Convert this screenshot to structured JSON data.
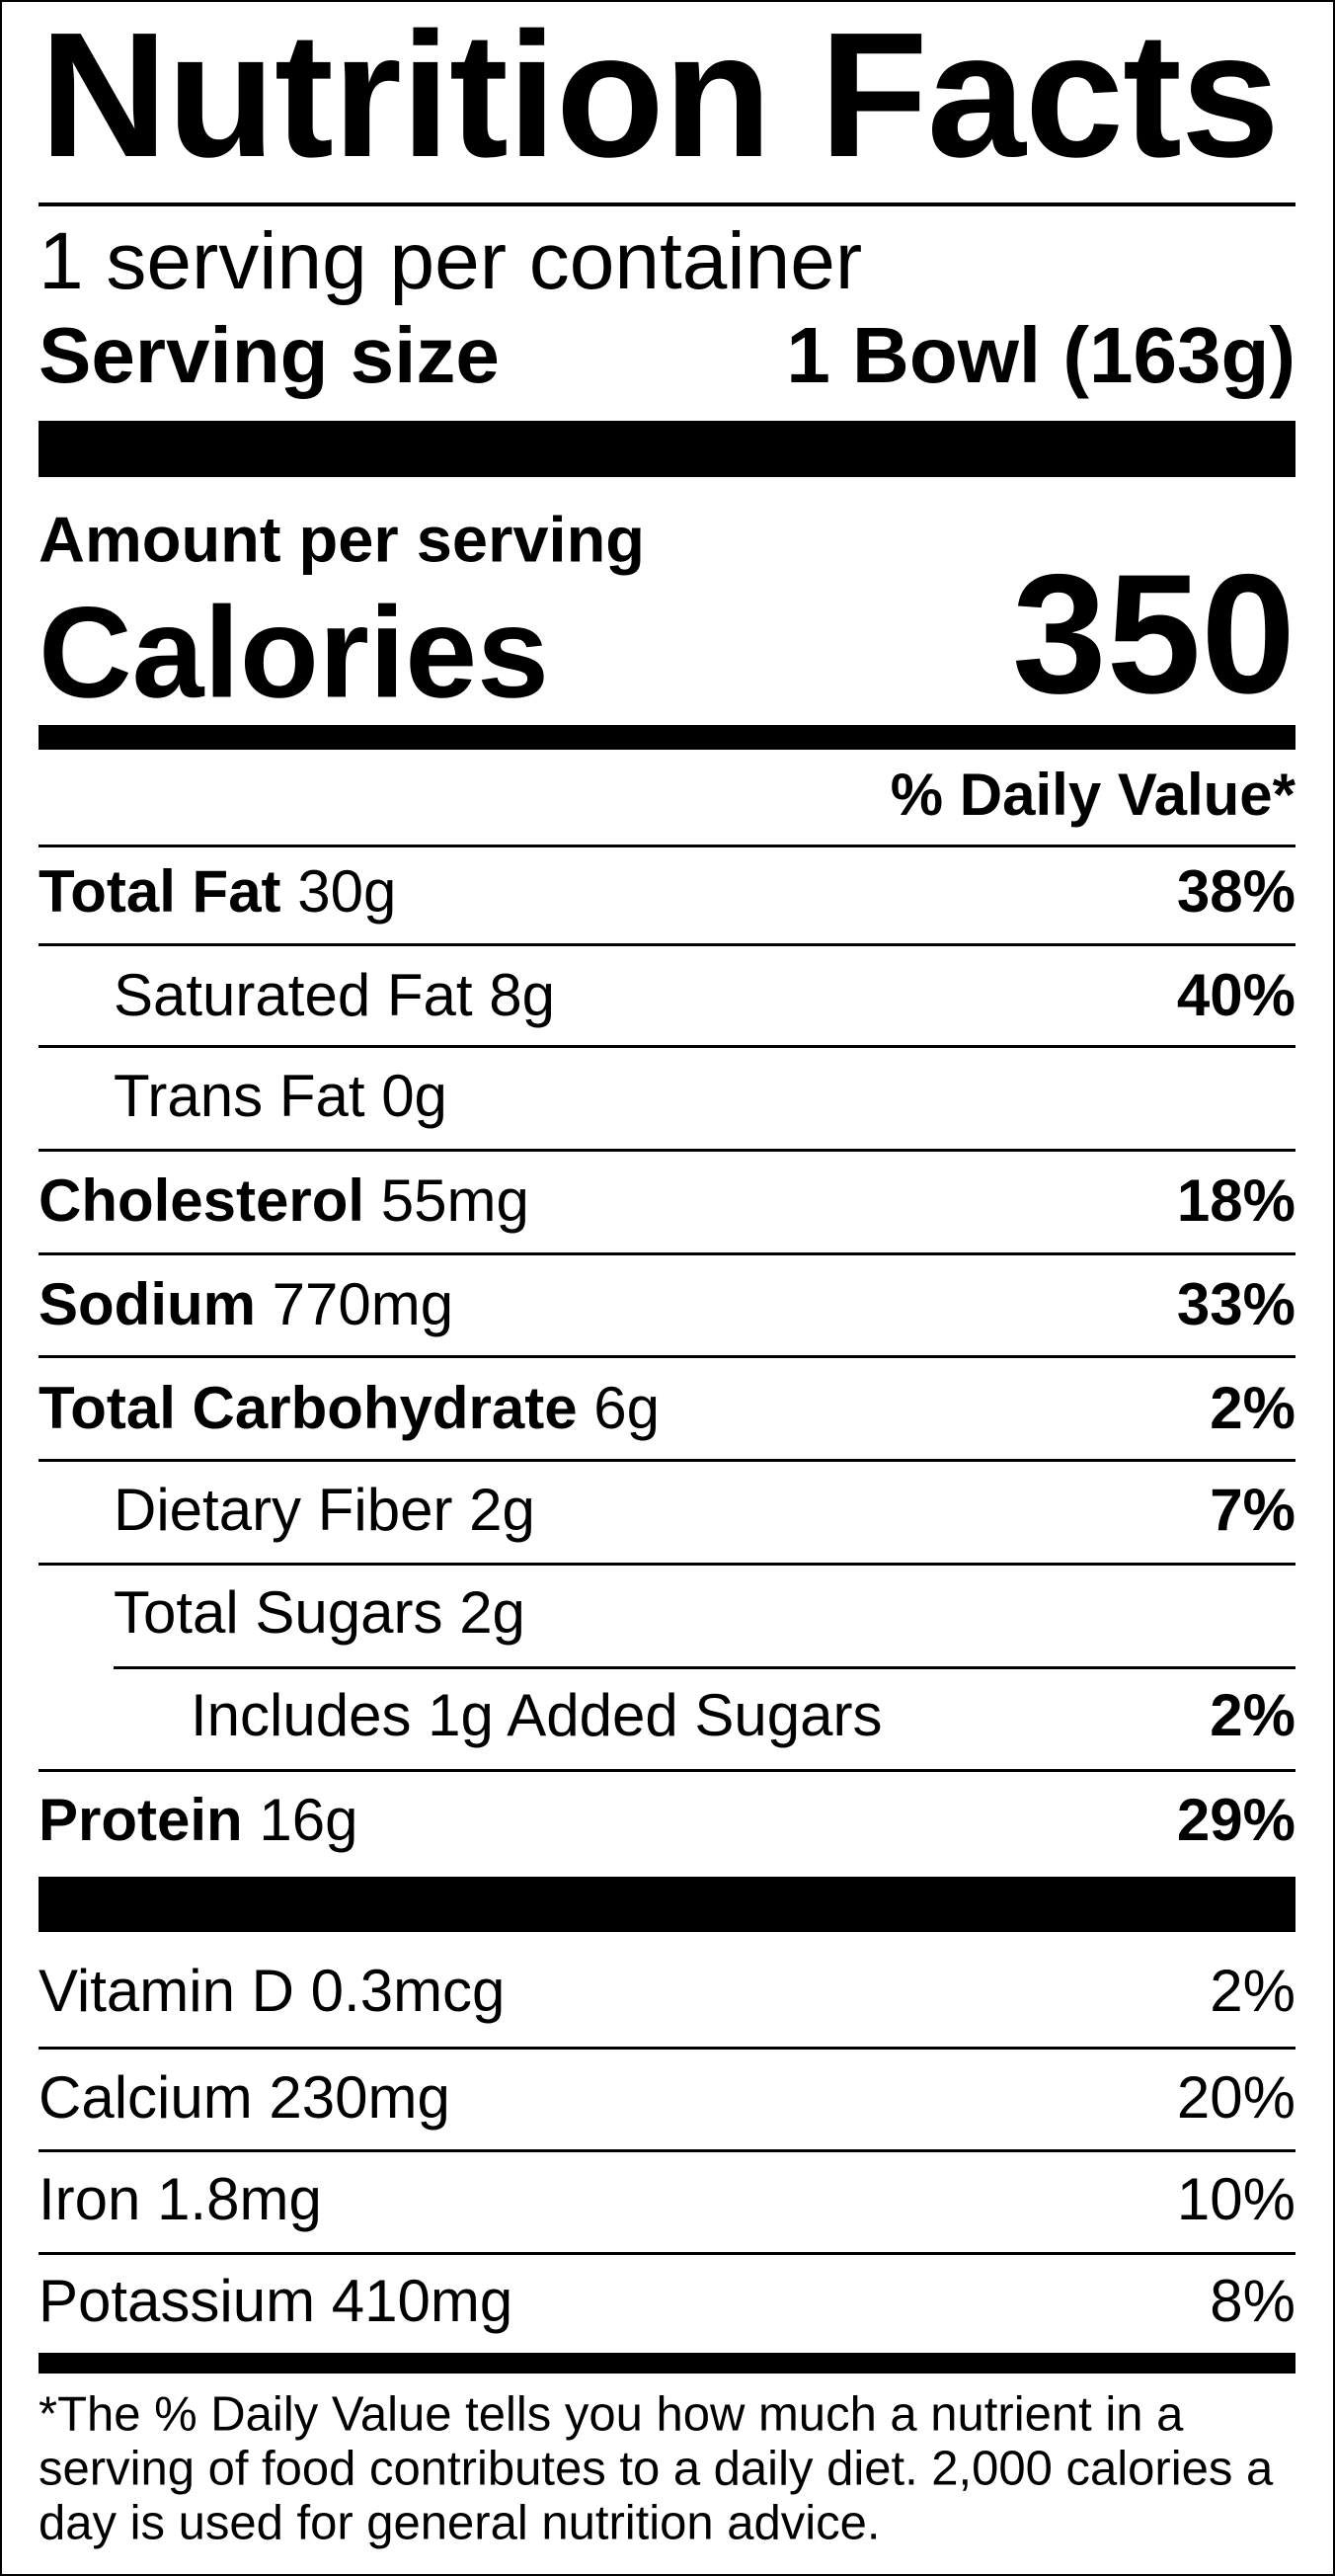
{
  "title": "Nutrition Facts",
  "servings_per_container": "1 serving per container",
  "serving_size": {
    "label": "Serving size",
    "value": "1 Bowl (163g)"
  },
  "amount_per_serving": "Amount per serving",
  "calories": {
    "label": "Calories",
    "value": "350"
  },
  "daily_value_header": "% Daily Value*",
  "nutrients": [
    {
      "name": "Total Fat",
      "amount": "30g",
      "dv": "38%"
    },
    {
      "name": "Saturated Fat",
      "amount": "8g",
      "dv": "40%"
    },
    {
      "name": "Trans Fat",
      "amount": "0g",
      "dv": ""
    },
    {
      "name": "Cholesterol",
      "amount": "55mg",
      "dv": "18%"
    },
    {
      "name": "Sodium",
      "amount": "770mg",
      "dv": "33%"
    },
    {
      "name": "Total Carbohydrate",
      "amount": "6g",
      "dv": "2%"
    },
    {
      "name": "Dietary Fiber",
      "amount": "2g",
      "dv": "7%"
    },
    {
      "name": "Total Sugars",
      "amount": "2g",
      "dv": ""
    },
    {
      "name": "Includes 1g Added Sugars",
      "amount": "",
      "dv": "2%"
    },
    {
      "name": "Protein",
      "amount": "16g",
      "dv": "29%"
    }
  ],
  "vitamins": [
    {
      "name": "Vitamin D",
      "amount": "0.3mcg",
      "dv": "2%"
    },
    {
      "name": "Calcium",
      "amount": "230mg",
      "dv": "20%"
    },
    {
      "name": "Iron",
      "amount": "1.8mg",
      "dv": "10%"
    },
    {
      "name": "Potassium",
      "amount": "410mg",
      "dv": "8%"
    }
  ],
  "footnote": [
    "*The % Daily Value tells you how much a nutrient in a",
    "serving of food contributes to a daily diet. 2,000 calories a",
    "day is used for general nutrition advice."
  ]
}
